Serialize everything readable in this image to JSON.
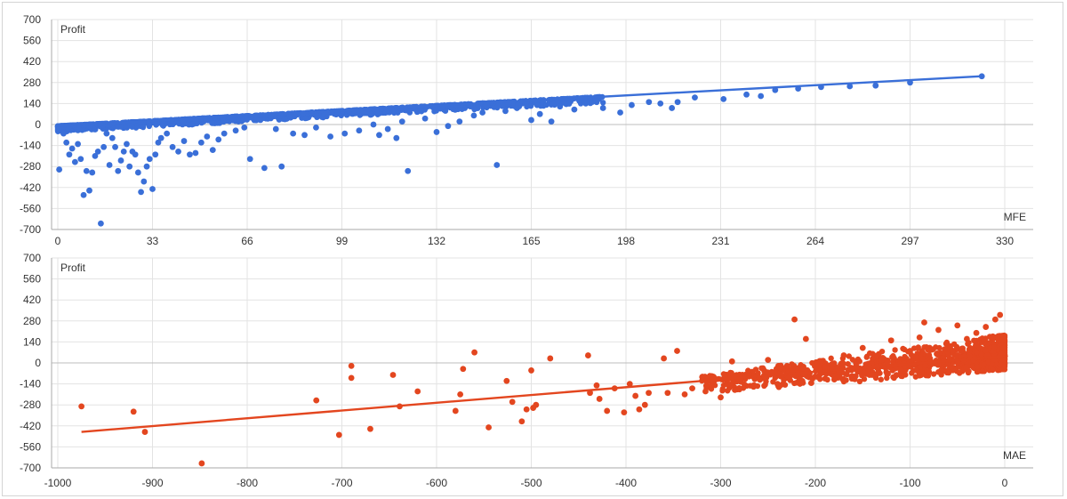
{
  "chart_data": [
    {
      "type": "scatter",
      "ylabel": "Profit",
      "xlabel": "MFE",
      "xlim": [
        0,
        330
      ],
      "ylim": [
        -700,
        700
      ],
      "xticks": [
        "0",
        "33",
        "66",
        "99",
        "132",
        "165",
        "198",
        "231",
        "264",
        "297",
        "330"
      ],
      "yticks": [
        "700",
        "560",
        "420",
        "280",
        "140",
        "0",
        "-140",
        "-280",
        "-420",
        "-560",
        "-700"
      ],
      "color": "#3a6fd8",
      "trendline": {
        "x": [
          0,
          322
        ],
        "y": [
          -10,
          322
        ]
      },
      "points": [
        [
          0.5,
          -300
        ],
        [
          2,
          -60
        ],
        [
          3,
          -120
        ],
        [
          4,
          -200
        ],
        [
          5,
          -160
        ],
        [
          6,
          -250
        ],
        [
          7,
          -130
        ],
        [
          8,
          -230
        ],
        [
          9,
          -470
        ],
        [
          10,
          -310
        ],
        [
          11,
          -440
        ],
        [
          12,
          -320
        ],
        [
          13,
          -210
        ],
        [
          14,
          -180
        ],
        [
          15,
          -660
        ],
        [
          16,
          -150
        ],
        [
          17,
          -60
        ],
        [
          18,
          -270
        ],
        [
          19,
          -90
        ],
        [
          20,
          -150
        ],
        [
          21,
          -310
        ],
        [
          22,
          -240
        ],
        [
          23,
          -180
        ],
        [
          24,
          -130
        ],
        [
          25,
          -280
        ],
        [
          26,
          -180
        ],
        [
          27,
          -200
        ],
        [
          28,
          -320
        ],
        [
          29,
          -450
        ],
        [
          30,
          -380
        ],
        [
          31,
          -280
        ],
        [
          32,
          -230
        ],
        [
          33,
          -430
        ],
        [
          34,
          -200
        ],
        [
          35,
          -120
        ],
        [
          36,
          -90
        ],
        [
          38,
          -60
        ],
        [
          40,
          -150
        ],
        [
          42,
          -180
        ],
        [
          44,
          -110
        ],
        [
          46,
          -200
        ],
        [
          48,
          -190
        ],
        [
          50,
          -120
        ],
        [
          52,
          -80
        ],
        [
          54,
          -170
        ],
        [
          56,
          -100
        ],
        [
          58,
          -60
        ],
        [
          62,
          -40
        ],
        [
          65,
          -20
        ],
        [
          67,
          -230
        ],
        [
          72,
          -290
        ],
        [
          76,
          -30
        ],
        [
          78,
          -280
        ],
        [
          82,
          -60
        ],
        [
          86,
          -70
        ],
        [
          90,
          -20
        ],
        [
          95,
          -80
        ],
        [
          100,
          -60
        ],
        [
          105,
          -40
        ],
        [
          110,
          0
        ],
        [
          112,
          -70
        ],
        [
          115,
          -30
        ],
        [
          118,
          -90
        ],
        [
          120,
          20
        ],
        [
          122,
          -310
        ],
        [
          128,
          40
        ],
        [
          132,
          -50
        ],
        [
          136,
          -10
        ],
        [
          140,
          20
        ],
        [
          145,
          60
        ],
        [
          148,
          80
        ],
        [
          153,
          -270
        ],
        [
          156,
          90
        ],
        [
          160,
          110
        ],
        [
          165,
          30
        ],
        [
          168,
          70
        ],
        [
          172,
          20
        ],
        [
          175,
          120
        ],
        [
          180,
          100
        ],
        [
          184,
          140
        ],
        [
          190,
          110
        ],
        [
          196,
          80
        ],
        [
          200,
          130
        ],
        [
          206,
          150
        ],
        [
          210,
          140
        ],
        [
          214,
          110
        ],
        [
          216,
          150
        ],
        [
          222,
          180
        ],
        [
          232,
          170
        ],
        [
          240,
          200
        ],
        [
          245,
          190
        ],
        [
          250,
          230
        ],
        [
          258,
          240
        ],
        [
          266,
          250
        ],
        [
          276,
          255
        ],
        [
          285,
          260
        ],
        [
          297,
          280
        ],
        [
          322,
          322
        ]
      ],
      "cloud": {
        "x_from": 0,
        "x_to": 190,
        "slope": 1.03,
        "intercept": -10,
        "spread_down": 40
      }
    },
    {
      "type": "scatter",
      "ylabel": "Profit",
      "xlabel": "MAE",
      "xlim": [
        -1000,
        0
      ],
      "ylim": [
        -700,
        700
      ],
      "xticks": [
        "-1000",
        "-900",
        "-800",
        "-700",
        "-600",
        "-500",
        "-400",
        "-300",
        "-200",
        "-100",
        "0"
      ],
      "yticks": [
        "700",
        "560",
        "420",
        "280",
        "140",
        "0",
        "-140",
        "-280",
        "-420",
        "-560",
        "-700"
      ],
      "color": "#e3461f",
      "trendline": {
        "x": [
          -975,
          0
        ],
        "y": [
          -460,
          45
        ]
      },
      "points": [
        [
          -975,
          -290
        ],
        [
          -920,
          -325
        ],
        [
          -908,
          -460
        ],
        [
          -848,
          -670
        ],
        [
          -727,
          -250
        ],
        [
          -703,
          -480
        ],
        [
          -690,
          -20
        ],
        [
          -690,
          -100
        ],
        [
          -670,
          -440
        ],
        [
          -646,
          -80
        ],
        [
          -639,
          -290
        ],
        [
          -620,
          -190
        ],
        [
          -580,
          -320
        ],
        [
          -575,
          -210
        ],
        [
          -572,
          -40
        ],
        [
          -560,
          70
        ],
        [
          -545,
          -430
        ],
        [
          -526,
          -120
        ],
        [
          -520,
          -260
        ],
        [
          -510,
          -390
        ],
        [
          -505,
          -310
        ],
        [
          -500,
          -50
        ],
        [
          -498,
          -300
        ],
        [
          -495,
          -280
        ],
        [
          -480,
          30
        ],
        [
          -440,
          50
        ],
        [
          -438,
          -200
        ],
        [
          -431,
          -150
        ],
        [
          -428,
          -240
        ],
        [
          -420,
          -320
        ],
        [
          -412,
          -170
        ],
        [
          -402,
          -330
        ],
        [
          -396,
          -140
        ],
        [
          -390,
          -220
        ],
        [
          -386,
          -310
        ],
        [
          -380,
          -280
        ],
        [
          -376,
          -200
        ],
        [
          -360,
          30
        ],
        [
          -356,
          -200
        ],
        [
          -346,
          80
        ],
        [
          -338,
          -210
        ],
        [
          -330,
          -170
        ],
        [
          -316,
          -190
        ],
        [
          -300,
          -230
        ],
        [
          -295,
          -100
        ],
        [
          -288,
          10
        ],
        [
          -285,
          -180
        ],
        [
          -280,
          -120
        ],
        [
          -270,
          -90
        ],
        [
          -265,
          -150
        ],
        [
          -250,
          20
        ],
        [
          -246,
          -60
        ],
        [
          -240,
          -140
        ],
        [
          -230,
          -20
        ],
        [
          -222,
          290
        ],
        [
          -218,
          -70
        ],
        [
          -210,
          160
        ],
        [
          -200,
          -90
        ],
        [
          -190,
          -30
        ],
        [
          -180,
          -110
        ],
        [
          -170,
          50
        ],
        [
          -160,
          -40
        ],
        [
          -150,
          100
        ],
        [
          -140,
          -80
        ],
        [
          -130,
          20
        ],
        [
          -120,
          150
        ],
        [
          -110,
          -50
        ],
        [
          -100,
          80
        ],
        [
          -90,
          170
        ],
        [
          -85,
          270
        ],
        [
          -80,
          -60
        ],
        [
          -70,
          220
        ],
        [
          -60,
          110
        ],
        [
          -50,
          250
        ],
        [
          -40,
          160
        ],
        [
          -30,
          200
        ],
        [
          -20,
          240
        ],
        [
          -10,
          290
        ],
        [
          -5,
          320
        ],
        [
          -3,
          60
        ],
        [
          -1,
          100
        ]
      ],
      "cloud": {
        "x_from": -320,
        "x_to": 0,
        "slope": 0.52,
        "intercept": 45,
        "spread_down": 90,
        "spread_up": 150
      }
    }
  ]
}
